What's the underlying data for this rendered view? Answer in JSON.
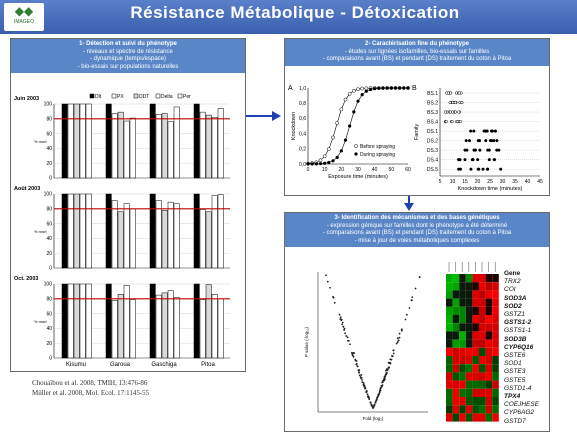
{
  "header": {
    "title": "Résistance  Métabolique - Détoxication",
    "logo_text": "IMAGEO"
  },
  "panel1": {
    "heading": "1- Détection et suivi du phénotype",
    "bullets": [
      "- niveaux et spectre de résistance",
      "- dynamique (temps/espace)",
      "- bio-essais sur populations naturelles"
    ],
    "legend": [
      "Dlt",
      "PX",
      "DDT",
      "Delta",
      "Per"
    ],
    "rows": [
      {
        "label": "Juin 2003",
        "sublabel": "% mort"
      },
      {
        "label": "Août 2003",
        "sublabel": "% mort"
      },
      {
        "label": "Oct. 2003",
        "sublabel": "% mort"
      }
    ],
    "y_ticks": [
      "0",
      "20",
      "40",
      "60",
      "80",
      "100"
    ],
    "sites": [
      "Kisumu",
      "Garoua",
      "Gaschiga",
      "Pitoa"
    ],
    "colors": {
      "line": "#c00000"
    }
  },
  "refs": [
    "Chouaïbou et al. 2008, TMIH, 13:476-86",
    "Müller et al. 2008, Mol. Ecol. 17:1145-55"
  ],
  "panel2": {
    "heading": "2- Caractérisation fine du phénotype",
    "bullets": [
      "- études sur lignées isofamilles, bio-essais sur familles",
      "- comparaisons avant (BS) et pendant (DS) traitement du coton à Pitoa"
    ],
    "chartA": {
      "letter": "A",
      "ylabel": "Knockdown",
      "xlabel": "Exposure time (minutes)",
      "y_ticks": [
        "0,0",
        "0,2",
        "0,4",
        "0,6",
        "0,8",
        "1,0"
      ],
      "x_ticks": [
        "0",
        "10",
        "20",
        "30",
        "40",
        "50",
        "60"
      ],
      "legend": [
        "Before spraying",
        "During spraying"
      ]
    },
    "chartB": {
      "letter": "B",
      "ylabel": "Family",
      "xlabel": "Knockdown time (minutes)",
      "families": [
        "BS.1",
        "BS.2",
        "BS.3",
        "BS.4",
        "DS.1",
        "DS.2",
        "DS.3",
        "DS.4",
        "DS.5"
      ],
      "x_ticks": [
        "5",
        "10",
        "15",
        "20",
        "25",
        "30",
        "35",
        "40",
        "45"
      ]
    }
  },
  "panel3": {
    "heading": "3- Identification des mécanismes et des bases génétiques",
    "bullets": [
      "- expression génique sur familles dont le phénotype a été déterminé",
      "- comparaisons avant (BS) et pendant (DS) traitement du coton à Pitoa",
      "- mise à jour de voies métaboliques complexes"
    ],
    "volcano": {
      "xlabel": "Fold (log₂)",
      "ylabel": "P value (-log₁₀)"
    },
    "genes_header": "Gene",
    "genes": [
      "TRX2",
      "COI",
      "SOD3A",
      "SOD2",
      "GSTZ1",
      "GSTS1-2",
      "GSTS1-1",
      "SOD3B",
      "CYP6Q16",
      "GSTE6",
      "SOD1",
      "GSTE3",
      "GSTE5",
      "GSTD1-4",
      "TPX4",
      "COEJHESE",
      "CYP6AG2",
      "GSTD7"
    ],
    "bold_genes": [
      "SOD3A",
      "SOD2",
      "GSTS1-2",
      "SOD3B",
      "CYP6Q16",
      "TPX4"
    ]
  }
}
